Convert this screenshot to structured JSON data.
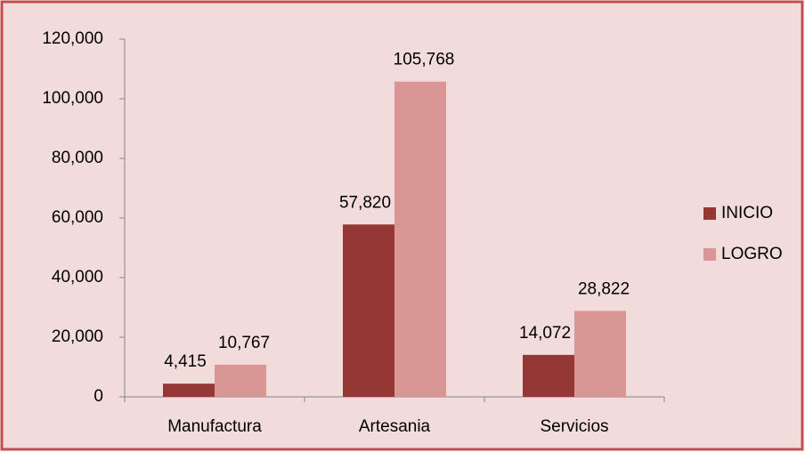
{
  "chart_data": {
    "type": "bar",
    "categories": [
      "Manufactura",
      "Artesania",
      "Servicios"
    ],
    "series": [
      {
        "name": "INICIO",
        "color": "#953735",
        "values": [
          4415,
          57820,
          14072
        ],
        "value_labels": [
          "4,415",
          "57,820",
          "14,072"
        ]
      },
      {
        "name": "LOGRO",
        "color": "#d99694",
        "values": [
          10767,
          105768,
          28822
        ],
        "value_labels": [
          "10,767",
          "105,768",
          "28,822"
        ]
      }
    ],
    "ylim": [
      0,
      120000
    ],
    "yticks": [
      0,
      {
        "value": 20000,
        "label": "20,000"
      },
      {
        "value": 40000,
        "label": "40,000"
      },
      {
        "value": 60000,
        "label": "60,000"
      },
      {
        "value": 80000,
        "label": "80,000"
      },
      {
        "value": 100000,
        "label": "100,000"
      },
      {
        "value": 120000,
        "label": "120,000"
      }
    ],
    "grid": false,
    "legend": "right"
  }
}
